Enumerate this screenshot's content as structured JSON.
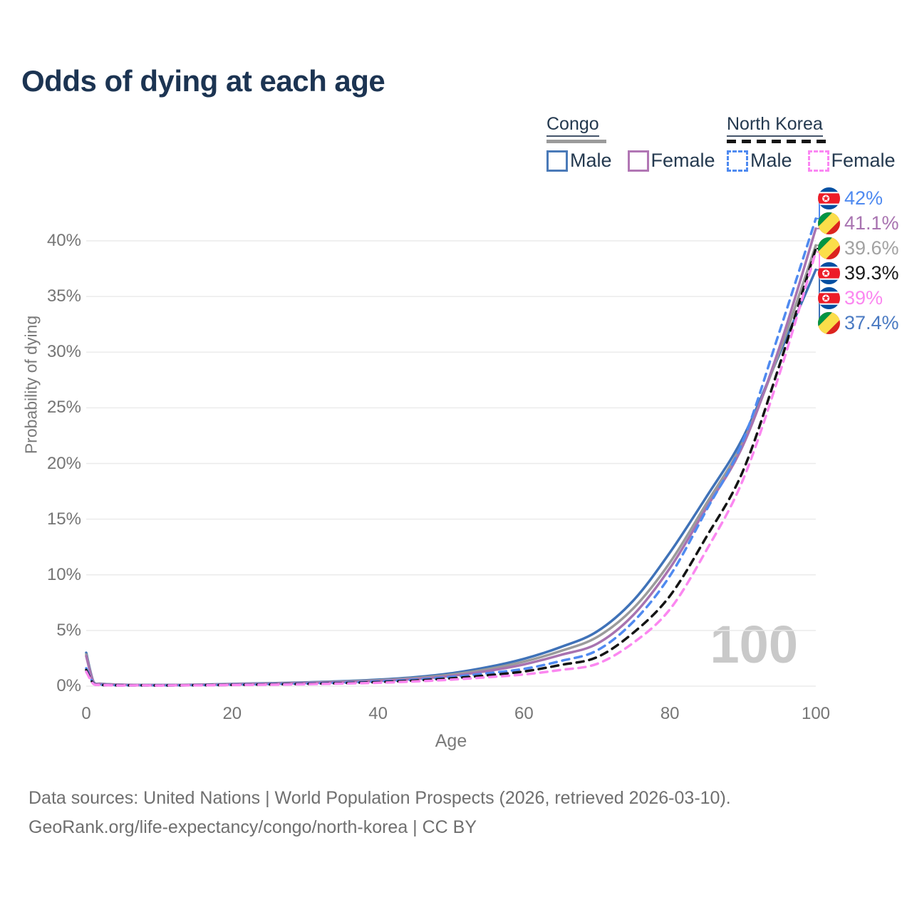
{
  "title": "Odds of dying at each age",
  "watermark": "100",
  "legend": {
    "congo": {
      "name": "Congo",
      "male_label": "Male",
      "female_label": "Female"
    },
    "north_korea": {
      "name": "North Korea",
      "male_label": "Male",
      "female_label": "Female"
    }
  },
  "colors": {
    "title_text": "#1c3452",
    "legend_text": "#24394f",
    "axis_text": "#757575",
    "gridline": "#ebebeb",
    "watermark": "#c9c9c9",
    "congo_male": "#3f72b8",
    "congo_total": "#9b9b9b",
    "congo_female": "#a873b0",
    "nk_male": "#4f8af0",
    "nk_total": "#141414",
    "nk_female": "#fb87f0"
  },
  "chart_data": {
    "type": "line",
    "title": "Odds of dying at each age",
    "xlabel": "Age",
    "ylabel": "Probability of dying",
    "xlim": [
      0,
      100
    ],
    "ylim": [
      0,
      44
    ],
    "x_ticks": [
      0,
      20,
      40,
      60,
      80,
      100
    ],
    "y_ticks": [
      "0%",
      "5%",
      "10%",
      "15%",
      "20%",
      "25%",
      "30%",
      "35%",
      "40%"
    ],
    "y_tick_values": [
      0,
      5,
      10,
      15,
      20,
      25,
      30,
      35,
      40
    ],
    "grid": "horizontal-only",
    "legend_position": "top-right",
    "x": [
      0,
      1,
      2,
      5,
      10,
      15,
      20,
      25,
      30,
      35,
      40,
      45,
      50,
      55,
      60,
      65,
      70,
      75,
      80,
      85,
      90,
      95,
      100
    ],
    "series": [
      {
        "name": "Congo Male",
        "country": "congo",
        "color": "#3f72b8",
        "dash": false,
        "end_label": "37.4%",
        "values": [
          3.0,
          0.4,
          0.22,
          0.13,
          0.1,
          0.13,
          0.2,
          0.26,
          0.34,
          0.44,
          0.58,
          0.8,
          1.15,
          1.7,
          2.45,
          3.5,
          4.9,
          7.7,
          12.0,
          17.0,
          22.3,
          29.8,
          37.4
        ]
      },
      {
        "name": "Congo",
        "country": "congo",
        "color": "#9b9b9b",
        "dash": false,
        "end_label": "39.6%",
        "values": [
          2.85,
          0.37,
          0.2,
          0.12,
          0.09,
          0.12,
          0.18,
          0.24,
          0.31,
          0.4,
          0.52,
          0.72,
          1.03,
          1.52,
          2.2,
          3.15,
          4.4,
          7.0,
          11.1,
          16.4,
          21.9,
          30.0,
          39.6
        ]
      },
      {
        "name": "Congo Female",
        "country": "congo",
        "color": "#a873b0",
        "dash": false,
        "end_label": "41.1%",
        "values": [
          2.7,
          0.34,
          0.18,
          0.11,
          0.09,
          0.11,
          0.16,
          0.21,
          0.28,
          0.36,
          0.47,
          0.64,
          0.92,
          1.36,
          1.95,
          2.8,
          3.8,
          6.4,
          10.6,
          16.0,
          21.6,
          30.4,
          41.1
        ]
      },
      {
        "name": "North Korea Male",
        "country": "north-korea",
        "color": "#4f8af0",
        "dash": true,
        "end_label": "42%",
        "values": [
          1.6,
          0.25,
          0.12,
          0.07,
          0.06,
          0.08,
          0.12,
          0.17,
          0.23,
          0.31,
          0.42,
          0.58,
          0.82,
          1.15,
          1.55,
          2.25,
          3.2,
          5.8,
          9.9,
          15.8,
          22.0,
          31.8,
          42.0
        ]
      },
      {
        "name": "North Korea",
        "country": "north-korea",
        "color": "#141414",
        "dash": true,
        "end_label": "39.3%",
        "values": [
          1.45,
          0.22,
          0.11,
          0.07,
          0.06,
          0.08,
          0.11,
          0.15,
          0.2,
          0.27,
          0.36,
          0.5,
          0.7,
          0.97,
          1.32,
          1.9,
          2.6,
          4.8,
          8.1,
          13.4,
          19.3,
          28.8,
          39.3
        ]
      },
      {
        "name": "North Korea Female",
        "country": "north-korea",
        "color": "#fb87f0",
        "dash": true,
        "end_label": "39%",
        "values": [
          1.3,
          0.19,
          0.1,
          0.06,
          0.05,
          0.07,
          0.1,
          0.13,
          0.17,
          0.23,
          0.3,
          0.42,
          0.58,
          0.8,
          1.05,
          1.45,
          2.0,
          3.9,
          6.9,
          12.2,
          18.5,
          28.0,
          39.0
        ]
      }
    ]
  },
  "end_labels": [
    {
      "flag": "north-korea",
      "value": "42%",
      "series": "North Korea Male",
      "text_color": "#4f8af0"
    },
    {
      "flag": "congo",
      "value": "41.1%",
      "series": "Congo Female",
      "text_color": "#a873b0"
    },
    {
      "flag": "congo",
      "value": "39.6%",
      "series": "Congo",
      "text_color": "#a2a2a2"
    },
    {
      "flag": "north-korea",
      "value": "39.3%",
      "series": "North Korea",
      "text_color": "#1a1a1a"
    },
    {
      "flag": "north-korea",
      "value": "39%",
      "series": "North Korea Female",
      "text_color": "#fb87f0"
    },
    {
      "flag": "congo",
      "value": "37.4%",
      "series": "Congo Male",
      "text_color": "#4a7ac2"
    }
  ],
  "footer": {
    "line1": "Data sources: United Nations | World Population Prospects (2026, retrieved 2026-03-10).",
    "line2": "GeoRank.org/life-expectancy/congo/north-korea | CC BY"
  }
}
